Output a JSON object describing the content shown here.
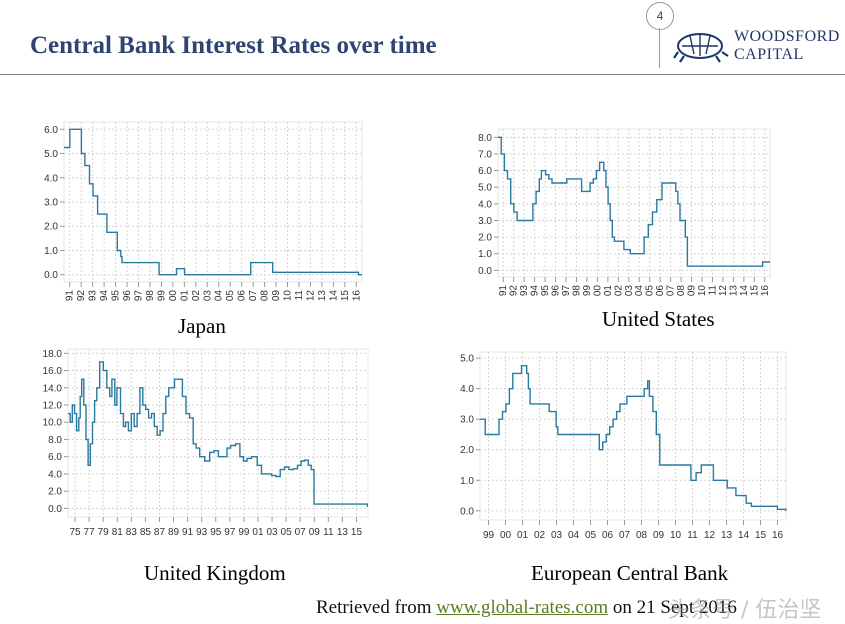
{
  "header": {
    "title": "Central Bank Interest Rates over time",
    "page_number": "4",
    "logo_line1": "WOODSFORD",
    "logo_line2": "CAPITAL",
    "logo_icon": "tortoise-icon"
  },
  "footer": {
    "prefix": "Retrieved from ",
    "link": "www.global-rates.com",
    "suffix": " on 21 Sept 2016"
  },
  "watermark": "头条号 / 伍治坚",
  "colors": {
    "line": "#2a7aa0",
    "title": "#2e4571",
    "link": "#5a7d22",
    "grid": "#d6d6d6"
  },
  "chart_data": [
    {
      "id": "japan",
      "type": "line",
      "title": "Japan",
      "x_ticks": [
        "91",
        "92",
        "93",
        "94",
        "95",
        "96",
        "97",
        "98",
        "99",
        "00",
        "01",
        "02",
        "03",
        "04",
        "05",
        "06",
        "07",
        "08",
        "09",
        "10",
        "11",
        "12",
        "13",
        "14",
        "15",
        "16"
      ],
      "xlim": [
        1991,
        2016.7
      ],
      "ylim": [
        -0.3,
        6.3
      ],
      "y_ticks": [
        "0.0",
        "1.0",
        "2.0",
        "3.0",
        "4.0",
        "5.0",
        "6.0"
      ],
      "y_tick_values": [
        0,
        1,
        2,
        3,
        4,
        5,
        6
      ],
      "x": [
        1991.0,
        1991.5,
        1991.5,
        1992.2,
        1992.5,
        1992.8,
        1993.2,
        1993.5,
        1993.9,
        1994.3,
        1994.7,
        1995.2,
        1995.6,
        1995.9,
        1996.0,
        1998.8,
        1999.2,
        2000.6,
        2000.7,
        2001.2,
        2001.4,
        2006.6,
        2007.1,
        2008.9,
        2009.0,
        2016.3,
        2016.4,
        2016.7
      ],
      "y": [
        5.25,
        5.25,
        6.0,
        6.0,
        5.0,
        4.5,
        3.75,
        3.25,
        2.5,
        2.5,
        1.75,
        1.75,
        1.0,
        0.75,
        0.5,
        0.5,
        0.0,
        0.0,
        0.25,
        0.25,
        0.0,
        0.0,
        0.5,
        0.5,
        0.1,
        0.1,
        0.0,
        0.0
      ]
    },
    {
      "id": "us",
      "type": "line",
      "title": "United States",
      "x_ticks": [
        "91",
        "92",
        "93",
        "94",
        "95",
        "96",
        "97",
        "98",
        "99",
        "00",
        "01",
        "02",
        "03",
        "04",
        "05",
        "06",
        "07",
        "08",
        "09",
        "10",
        "11",
        "12",
        "13",
        "14",
        "15",
        "16"
      ],
      "xlim": [
        1991,
        2016.7
      ],
      "ylim": [
        -0.4,
        8.5
      ],
      "y_ticks": [
        "0.0",
        "1.0",
        "2.0",
        "3.0",
        "4.0",
        "5.0",
        "6.0",
        "7.0",
        "8.0"
      ],
      "y_tick_values": [
        0,
        1,
        2,
        3,
        4,
        5,
        6,
        7,
        8
      ],
      "x": [
        1991.0,
        1991.3,
        1991.6,
        1991.9,
        1992.2,
        1992.5,
        1992.8,
        1993.0,
        1994.0,
        1994.3,
        1994.6,
        1994.9,
        1995.1,
        1995.5,
        1995.8,
        1996.1,
        1997.2,
        1997.5,
        1998.7,
        1998.9,
        1999.4,
        1999.7,
        2000.0,
        2000.3,
        2000.6,
        2001.0,
        2001.2,
        2001.4,
        2001.6,
        2001.8,
        2002.0,
        2002.9,
        2003.5,
        2004.5,
        2004.8,
        2005.2,
        2005.6,
        2006.0,
        2006.5,
        2007.6,
        2007.8,
        2008.0,
        2008.2,
        2008.7,
        2008.9,
        2015.9,
        2016.0,
        2016.7
      ],
      "y": [
        8.0,
        7.0,
        6.0,
        5.5,
        4.0,
        3.5,
        3.0,
        3.0,
        3.0,
        4.0,
        4.75,
        5.5,
        6.0,
        5.75,
        5.5,
        5.25,
        5.25,
        5.5,
        5.5,
        4.75,
        4.75,
        5.25,
        5.5,
        6.0,
        6.5,
        6.0,
        5.0,
        4.0,
        3.0,
        2.0,
        1.75,
        1.25,
        1.0,
        1.0,
        2.0,
        2.75,
        3.5,
        4.25,
        5.25,
        5.25,
        4.75,
        4.0,
        3.0,
        2.0,
        0.25,
        0.25,
        0.5,
        0.5
      ]
    },
    {
      "id": "uk",
      "type": "line",
      "title": "United Kingdom",
      "x_ticks": [
        "75",
        "77",
        "79",
        "81",
        "83",
        "85",
        "87",
        "89",
        "91",
        "93",
        "95",
        "97",
        "99",
        "01",
        "03",
        "05",
        "07",
        "09",
        "11",
        "13",
        "15"
      ],
      "xlim": [
        1975,
        2016.7
      ],
      "ylim": [
        -1.0,
        18.5
      ],
      "y_ticks": [
        "0.0",
        "2.0",
        "4.0",
        "6.0",
        "8.0",
        "10.0",
        "12.0",
        "14.0",
        "16.0",
        "18.0"
      ],
      "y_tick_values": [
        0,
        2,
        4,
        6,
        8,
        10,
        12,
        14,
        16,
        18
      ],
      "x": [
        1975.0,
        1975.3,
        1975.6,
        1975.9,
        1976.2,
        1976.5,
        1976.7,
        1976.9,
        1977.2,
        1977.5,
        1977.8,
        1978.1,
        1978.4,
        1978.7,
        1979.0,
        1979.4,
        1979.9,
        1980.4,
        1980.8,
        1981.1,
        1981.5,
        1981.8,
        1982.3,
        1982.7,
        1983.0,
        1983.4,
        1983.8,
        1984.2,
        1984.6,
        1985.0,
        1985.4,
        1985.8,
        1986.2,
        1986.6,
        1987.0,
        1987.4,
        1987.8,
        1988.2,
        1988.6,
        1989.0,
        1989.8,
        1990.4,
        1990.9,
        1991.4,
        1991.9,
        1992.4,
        1992.8,
        1993.3,
        1994.0,
        1994.7,
        1995.3,
        1995.9,
        1996.5,
        1997.1,
        1997.6,
        1998.3,
        1998.9,
        1999.4,
        1999.9,
        2000.5,
        2001.3,
        2001.9,
        2002.6,
        2003.3,
        2003.9,
        2004.5,
        2005.1,
        2005.7,
        2006.3,
        2006.9,
        2007.4,
        2007.9,
        2008.4,
        2008.8,
        2009.2,
        2016.4,
        2016.6,
        2016.7
      ],
      "y": [
        11.0,
        10.0,
        12.0,
        11.0,
        9.0,
        10.5,
        13.0,
        15.0,
        12.0,
        8.0,
        5.0,
        7.5,
        10.0,
        12.5,
        14.0,
        17.0,
        16.0,
        14.0,
        13.0,
        15.0,
        12.0,
        14.0,
        11.0,
        9.5,
        10.0,
        9.0,
        11.0,
        9.5,
        11.0,
        14.0,
        12.0,
        11.5,
        10.5,
        11.0,
        9.5,
        8.5,
        9.0,
        11.0,
        13.0,
        14.0,
        15.0,
        15.0,
        13.0,
        11.0,
        10.5,
        7.5,
        7.0,
        6.0,
        5.5,
        6.5,
        6.7,
        6.0,
        6.0,
        7.0,
        7.3,
        7.5,
        6.0,
        5.5,
        5.8,
        6.0,
        5.0,
        4.0,
        4.0,
        3.8,
        3.7,
        4.5,
        4.8,
        4.5,
        4.6,
        5.0,
        5.5,
        5.6,
        5.0,
        4.5,
        0.5,
        0.5,
        0.25,
        0.25
      ]
    },
    {
      "id": "ecb",
      "type": "line",
      "title": "European Central Bank",
      "x_ticks": [
        "99",
        "00",
        "01",
        "02",
        "03",
        "04",
        "05",
        "06",
        "07",
        "08",
        "09",
        "10",
        "11",
        "12",
        "13",
        "14",
        "15",
        "16"
      ],
      "xlim": [
        1999,
        2016.7
      ],
      "ylim": [
        -0.3,
        5.2
      ],
      "y_ticks": [
        "0.0",
        "1.0",
        "2.0",
        "3.0",
        "4.0",
        "5.0"
      ],
      "y_tick_values": [
        0,
        1,
        2,
        3,
        4,
        5
      ],
      "x": [
        1999.0,
        1999.3,
        1999.9,
        2000.1,
        2000.3,
        2000.5,
        2000.7,
        2000.9,
        2001.4,
        2001.7,
        2001.8,
        2001.9,
        2003.0,
        2003.4,
        2003.5,
        2005.9,
        2006.1,
        2006.3,
        2006.5,
        2006.7,
        2006.9,
        2007.1,
        2007.5,
        2008.5,
        2008.7,
        2008.8,
        2009.0,
        2009.2,
        2009.4,
        2011.2,
        2011.5,
        2011.8,
        2012.5,
        2013.3,
        2013.8,
        2014.4,
        2014.7,
        2016.2,
        2016.7
      ],
      "y": [
        3.0,
        2.5,
        2.5,
        3.0,
        3.25,
        3.5,
        4.0,
        4.5,
        4.75,
        4.5,
        4.0,
        3.5,
        3.25,
        2.75,
        2.5,
        2.0,
        2.25,
        2.5,
        2.75,
        3.0,
        3.25,
        3.5,
        3.75,
        4.0,
        4.25,
        3.75,
        3.25,
        2.5,
        1.5,
        1.0,
        1.25,
        1.5,
        1.0,
        0.75,
        0.5,
        0.25,
        0.15,
        0.05,
        0.0
      ]
    }
  ],
  "captions": {
    "japan": "Japan",
    "us": "United States",
    "uk": "United Kingdom",
    "ecb": "European Central Bank"
  }
}
